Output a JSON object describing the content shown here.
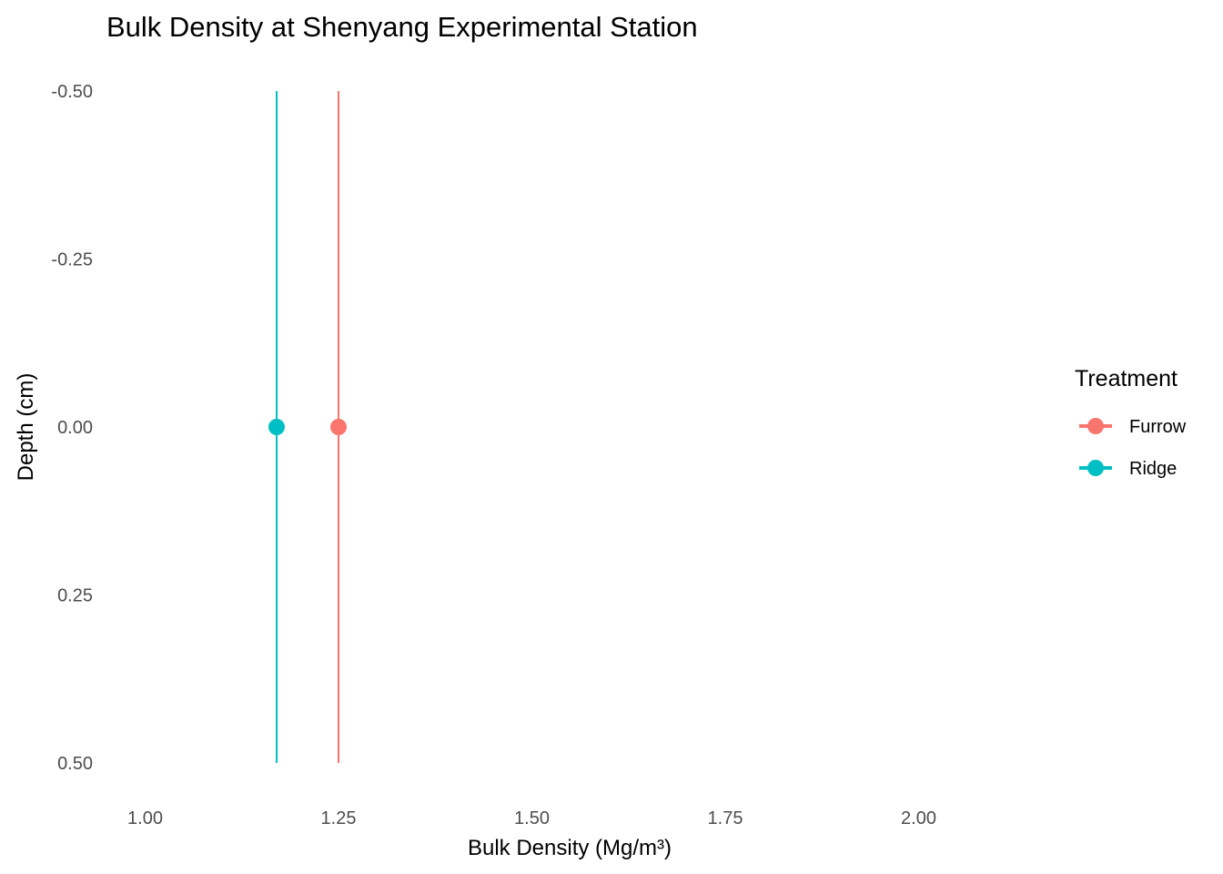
{
  "chart_data": {
    "type": "scatter",
    "title": "Bulk Density at Shenyang Experimental Station",
    "xlabel": "Bulk Density (Mg/m³)",
    "ylabel": "Depth (cm)",
    "xlim": [
      0.95,
      2.15
    ],
    "ylim": [
      -0.5,
      0.5
    ],
    "y_reversed": true,
    "x_ticks": [
      "1.00",
      "1.25",
      "1.50",
      "1.75",
      "2.00"
    ],
    "y_ticks": [
      "-0.50",
      "-0.25",
      "0.00",
      "0.25",
      "0.50"
    ],
    "grid": false,
    "legend": {
      "title": "Treatment",
      "position": "right"
    },
    "series": [
      {
        "name": "Furrow",
        "color": "#F8766D",
        "x": [
          1.25
        ],
        "y": [
          0.0
        ],
        "vline_x": 1.25
      },
      {
        "name": "Ridge",
        "color": "#00BFC4",
        "x": [
          1.17
        ],
        "y": [
          0.0
        ],
        "vline_x": 1.17
      }
    ]
  }
}
